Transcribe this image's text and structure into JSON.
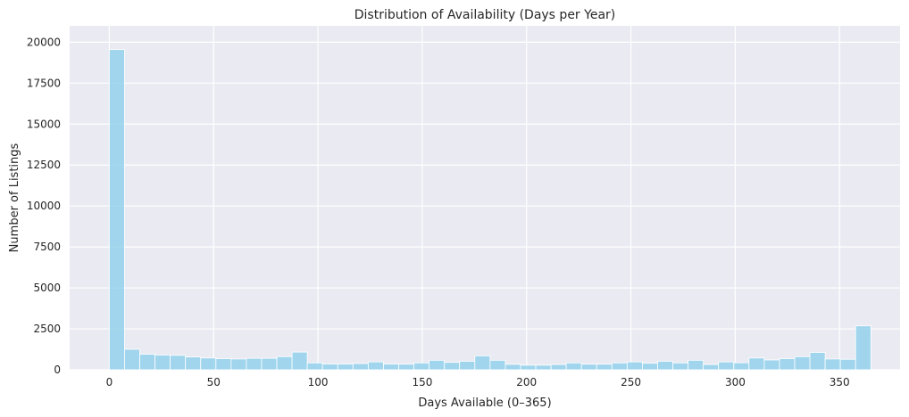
{
  "chart_data": {
    "type": "bar",
    "title": "Distribution of Availability (Days per Year)",
    "xlabel": "Days Available (0–365)",
    "ylabel": "Number of Listings",
    "xlim": [
      -19,
      379
    ],
    "ylim": [
      0,
      21000
    ],
    "xticks": [
      0,
      50,
      100,
      150,
      200,
      250,
      300,
      350
    ],
    "yticks": [
      0,
      2500,
      5000,
      7500,
      10000,
      12500,
      15000,
      17500,
      20000
    ],
    "grid": true,
    "bin_width": 7.3,
    "bin_start": 0,
    "values": [
      19550,
      1250,
      950,
      900,
      880,
      780,
      720,
      680,
      660,
      700,
      700,
      800,
      1080,
      420,
      350,
      350,
      380,
      480,
      350,
      340,
      420,
      580,
      450,
      520,
      850,
      580,
      330,
      280,
      280,
      320,
      420,
      340,
      340,
      420,
      480,
      400,
      520,
      420,
      580,
      320,
      480,
      430,
      720,
      600,
      680,
      800,
      1060,
      660,
      640,
      2680
    ],
    "colors": {
      "bar": "#87CEEB",
      "bar_edge": "#ffffff",
      "plot_bg": "#EAEAF2",
      "grid": "#ffffff",
      "text": "#262626"
    }
  }
}
